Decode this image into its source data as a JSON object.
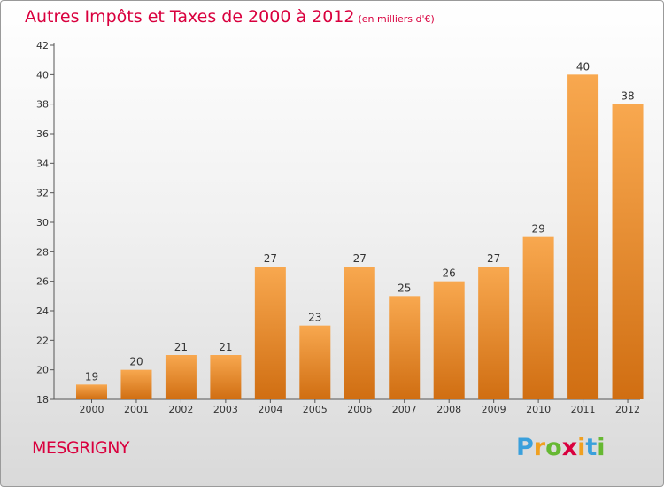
{
  "title": "Autres Impôts et Taxes de 2000 à 2012",
  "unit_note": "(en milliers d'€)",
  "city": "MESGRIGNY",
  "brand": {
    "letters": [
      "P",
      "r",
      "o",
      "x",
      "i",
      "t",
      "i"
    ],
    "colors": [
      "#3aa0dc",
      "#f0a020",
      "#66b832",
      "#d9003e",
      "#f0a020",
      "#3aa0dc",
      "#66b832"
    ]
  },
  "colors": {
    "title": "#d9003e",
    "bar_light": "#f8a84f",
    "bar_dark": "#d06e12"
  },
  "chart_data": {
    "type": "bar",
    "categories": [
      "2000",
      "2001",
      "2002",
      "2003",
      "2004",
      "2005",
      "2006",
      "2007",
      "2008",
      "2009",
      "2010",
      "2011",
      "2012"
    ],
    "values": [
      19,
      20,
      21,
      21,
      27,
      23,
      27,
      25,
      26,
      27,
      29,
      40,
      38
    ],
    "ylim": [
      18,
      42
    ],
    "yticks": [
      18,
      20,
      22,
      24,
      26,
      28,
      30,
      32,
      34,
      36,
      38,
      40,
      42
    ],
    "grid": false,
    "legend": "none"
  }
}
